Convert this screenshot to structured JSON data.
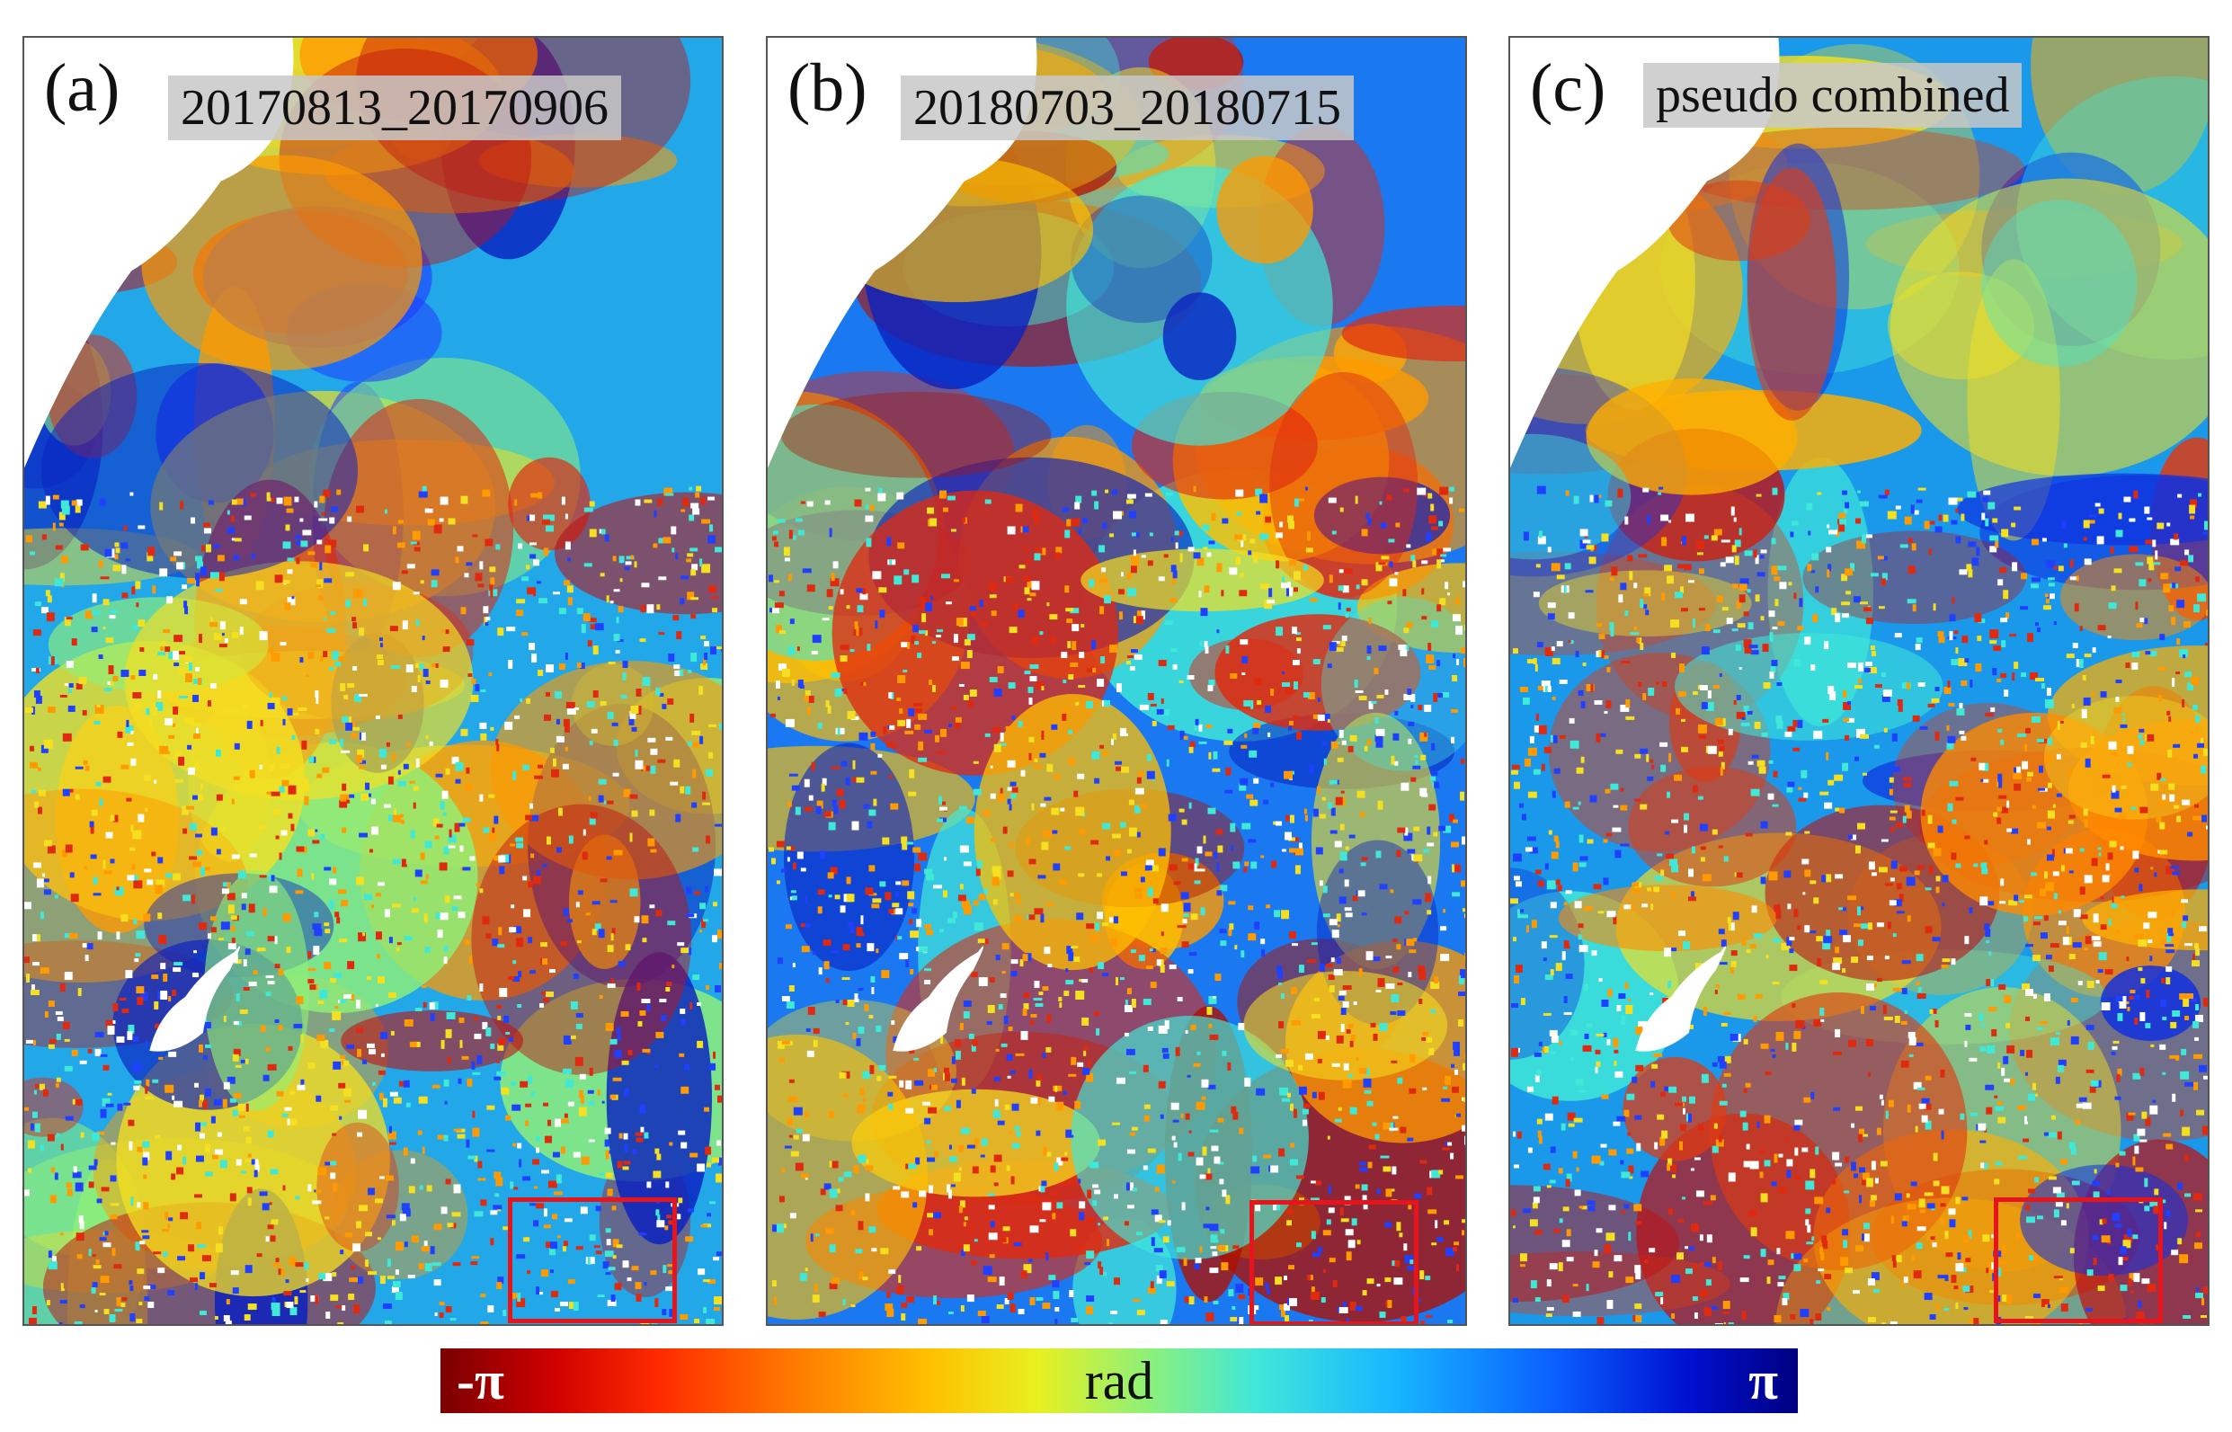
{
  "panels": [
    {
      "letter": "(a)",
      "label": "20170813_20170906",
      "colors": {
        "base": "#22a8e8",
        "blobs": [
          "#e02a10",
          "#ff9a00",
          "#f4e020",
          "#8ff078",
          "#2040ff",
          "#0a20c0",
          "#c01010"
        ]
      }
    },
    {
      "letter": "(b)",
      "label": "20180703_20180715",
      "colors": {
        "base": "#1a78f0",
        "blobs": [
          "#e02a10",
          "#ff9a00",
          "#f4e020",
          "#40e8d8",
          "#0a20c0",
          "#b01000",
          "#ffc000"
        ]
      }
    },
    {
      "letter": "(c)",
      "label": "pseudo combined",
      "colors": {
        "base": "#1a98ea",
        "blobs": [
          "#e03a10",
          "#ff8a00",
          "#f4e020",
          "#40e8d8",
          "#1030e0",
          "#c01010",
          "#ffb000"
        ]
      }
    }
  ],
  "colorbar": {
    "min_label": "-π",
    "mid_label": "rad",
    "max_label": "π"
  }
}
